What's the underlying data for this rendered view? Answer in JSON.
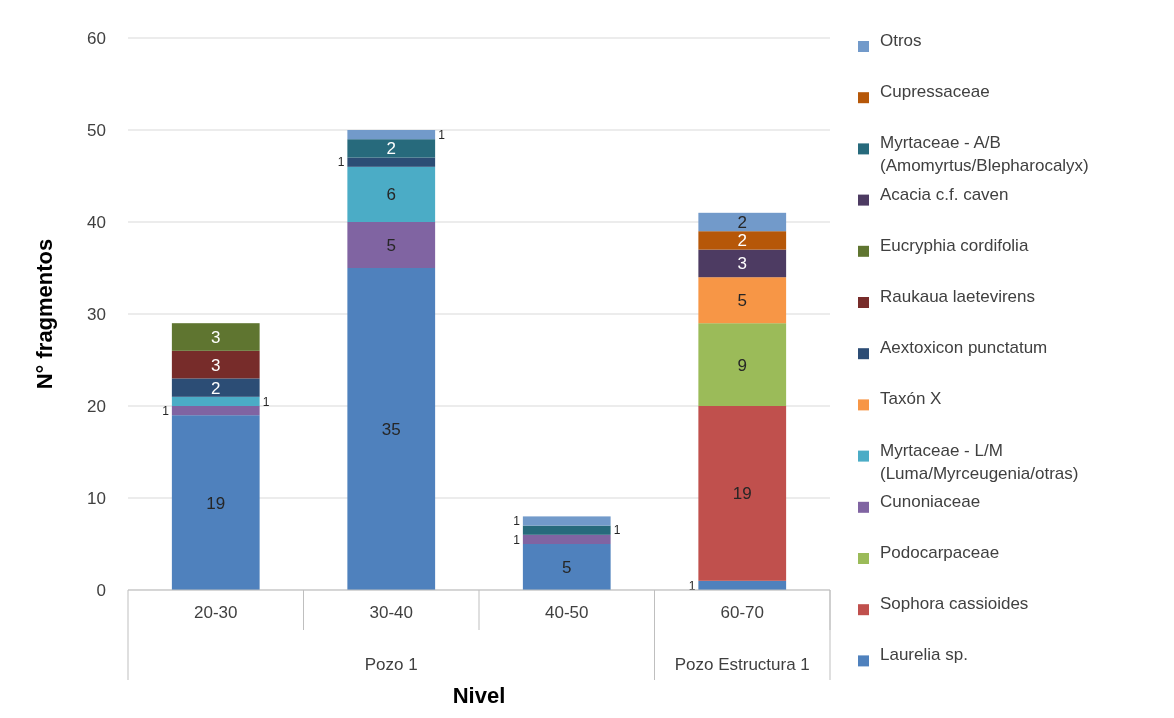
{
  "chart_data": {
    "type": "bar",
    "stacked": true,
    "xlabel": "Nivel",
    "ylabel": "N° fragmentos",
    "categories": [
      "20-30",
      "30-40",
      "40-50",
      "60-70"
    ],
    "annotations": [
      "Pozo 1",
      "Pozo Estructura 1"
    ],
    "ylim": [
      0,
      60
    ],
    "yticks": [
      0,
      10,
      20,
      30,
      40,
      50,
      60
    ],
    "grid": "y",
    "legend": "right",
    "data_labels": true,
    "series": [
      {
        "name": "Laurelia sp.",
        "color": "#4f81bd",
        "values": [
          19,
          35,
          5,
          1
        ]
      },
      {
        "name": "Sophora cassioides",
        "color": "#c0504d",
        "values": [
          null,
          null,
          null,
          19
        ]
      },
      {
        "name": "Podocarpaceae",
        "color": "#9bbb59",
        "values": [
          null,
          null,
          null,
          9
        ]
      },
      {
        "name": "Cunoniaceae",
        "color": "#8064a2",
        "values": [
          1,
          5,
          1,
          null
        ]
      },
      {
        "name": "Myrtaceae - L/M (Luma/Myrceugenia/otras)",
        "color": "#4bacc6",
        "values": [
          1,
          6,
          null,
          null
        ]
      },
      {
        "name": "Taxón X",
        "color": "#f79646",
        "values": [
          null,
          null,
          null,
          5
        ]
      },
      {
        "name": "Aextoxicon punctatum",
        "color": "#2c4d75",
        "values": [
          2,
          1,
          null,
          null
        ]
      },
      {
        "name": "Raukaua laetevirens",
        "color": "#772c2a",
        "values": [
          3,
          null,
          null,
          null
        ]
      },
      {
        "name": "Eucryphia cordifolia",
        "color": "#5f7530",
        "values": [
          3,
          null,
          null,
          null
        ]
      },
      {
        "name": "Acacia c.f. caven",
        "color": "#4d3b62",
        "values": [
          null,
          null,
          null,
          3
        ]
      },
      {
        "name": "Myrtaceae - A/B (Amomyrtus/Blepharocalyx)",
        "color": "#276a7c",
        "values": [
          null,
          2,
          1,
          null
        ]
      },
      {
        "name": "Cupressaceae",
        "color": "#b65708",
        "values": [
          null,
          null,
          null,
          2
        ]
      },
      {
        "name": "Otros",
        "color": "#729aca",
        "values": [
          null,
          1,
          1,
          2
        ]
      }
    ]
  }
}
